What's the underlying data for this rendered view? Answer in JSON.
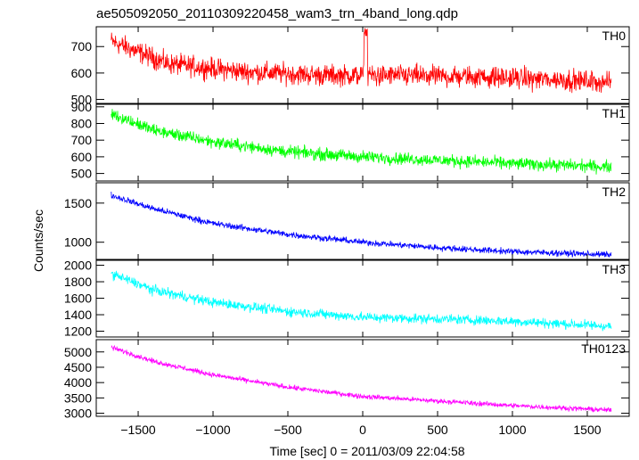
{
  "chart_data": {
    "type": "line",
    "title": "ae505092050_20110309220458_wam3_trn_4band_long.qdp",
    "xlabel": "Time [sec] 0 = 2011/03/09 22:04:58",
    "ylabel": "Counts/sec",
    "xlim": [
      -1780,
      1780
    ],
    "x_ticks": [
      -1500,
      -1000,
      -500,
      0,
      500,
      1000,
      1500
    ],
    "x_tick_labels": [
      "−1500",
      "−1000",
      "−500",
      "0",
      "500",
      "1000",
      "1500"
    ],
    "x_range_data": [
      -1680,
      1660
    ],
    "grid": false,
    "panels": [
      {
        "name": "TH0",
        "color": "#ff0000",
        "ylim": [
          485,
          775
        ],
        "y_ticks": [
          500,
          600,
          700
        ],
        "y_tick_labels": [
          "500",
          "600",
          "700"
        ],
        "trend": [
          [
            -1680,
            720
          ],
          [
            -1300,
            635
          ],
          [
            -800,
            605
          ],
          [
            -300,
            592
          ],
          [
            300,
            590
          ],
          [
            800,
            585
          ],
          [
            1300,
            575
          ],
          [
            1660,
            565
          ]
        ],
        "noise": 30,
        "spikes": [
          [
            20,
            770
          ]
        ]
      },
      {
        "name": "TH1",
        "color": "#00ff00",
        "ylim": [
          455,
          915
        ],
        "y_ticks": [
          500,
          600,
          700,
          800,
          900
        ],
        "y_tick_labels": [
          "500",
          "600",
          "700",
          "800",
          "900"
        ],
        "trend": [
          [
            -1680,
            860
          ],
          [
            -1400,
            760
          ],
          [
            -1000,
            690
          ],
          [
            -500,
            630
          ],
          [
            0,
            600
          ],
          [
            500,
            580
          ],
          [
            1000,
            560
          ],
          [
            1660,
            540
          ]
        ],
        "noise": 28,
        "spikes": []
      },
      {
        "name": "TH2",
        "color": "#0000ff",
        "ylim": [
          780,
          1760
        ],
        "y_ticks": [
          1000,
          1500
        ],
        "y_tick_labels": [
          "1000",
          "1500"
        ],
        "trend": [
          [
            -1680,
            1600
          ],
          [
            -1400,
            1430
          ],
          [
            -1000,
            1240
          ],
          [
            -500,
            1100
          ],
          [
            0,
            1000
          ],
          [
            500,
            930
          ],
          [
            1000,
            880
          ],
          [
            1660,
            840
          ]
        ],
        "noise": 30,
        "spikes": []
      },
      {
        "name": "TH3",
        "color": "#00ffff",
        "ylim": [
          1130,
          2060
        ],
        "y_ticks": [
          1200,
          1400,
          1600,
          1800,
          2000
        ],
        "y_tick_labels": [
          "1200",
          "1400",
          "1600",
          "1800",
          "2000"
        ],
        "trend": [
          [
            -1680,
            1900
          ],
          [
            -1400,
            1700
          ],
          [
            -1000,
            1550
          ],
          [
            -500,
            1440
          ],
          [
            0,
            1370
          ],
          [
            500,
            1350
          ],
          [
            1000,
            1320
          ],
          [
            1660,
            1260
          ]
        ],
        "noise": 45,
        "spikes": []
      },
      {
        "name": "TH0123",
        "color": "#ff00ff",
        "ylim": [
          2900,
          5400
        ],
        "y_ticks": [
          3000,
          3500,
          4000,
          4500,
          5000
        ],
        "y_tick_labels": [
          "3000",
          "3500",
          "4000",
          "4500",
          "5000"
        ],
        "trend": [
          [
            -1680,
            5150
          ],
          [
            -1400,
            4700
          ],
          [
            -1000,
            4250
          ],
          [
            -500,
            3850
          ],
          [
            0,
            3550
          ],
          [
            500,
            3400
          ],
          [
            1000,
            3250
          ],
          [
            1660,
            3100
          ]
        ],
        "noise": 60,
        "spikes": []
      }
    ]
  }
}
